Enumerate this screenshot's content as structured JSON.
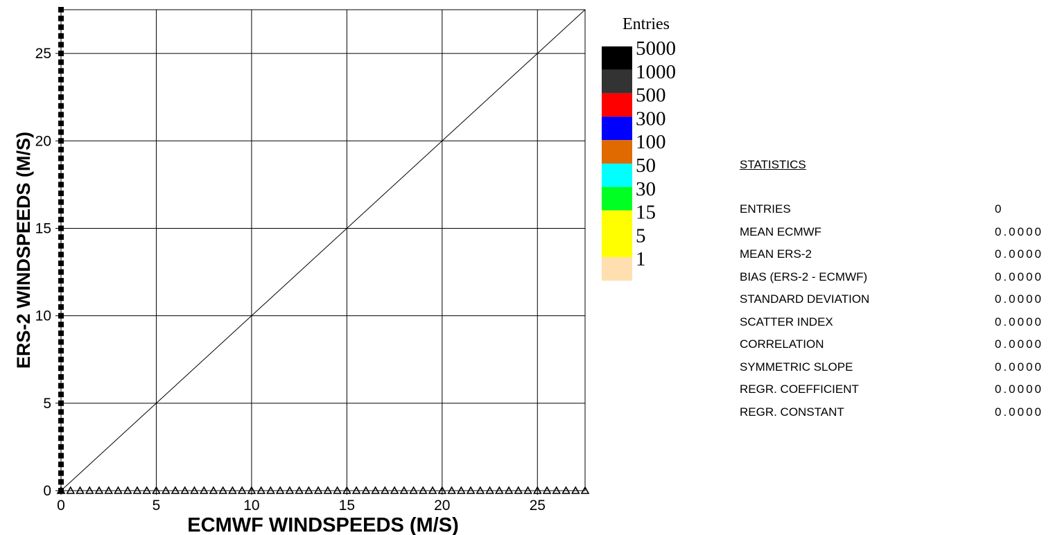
{
  "chart_data": {
    "type": "heatmap",
    "title": "",
    "xlabel": "ECMWF  WINDSPEEDS (M/S)",
    "ylabel": "ERS-2  WINDSPEEDS (M/S)",
    "xlim": [
      0,
      27.5
    ],
    "ylim": [
      0,
      27.5
    ],
    "x_ticks": [
      "0",
      "5",
      "10",
      "15",
      "20",
      "25"
    ],
    "y_ticks": [
      "0",
      "5",
      "10",
      "15",
      "20",
      "25"
    ],
    "grid": true,
    "diagonal_line": true,
    "points": [],
    "legend": {
      "title": "Entries",
      "placement": "right",
      "entries": [
        {
          "label": "5000",
          "color": "#000000"
        },
        {
          "label": "1000",
          "color": "#333333"
        },
        {
          "label": "500",
          "color": "#ff0000"
        },
        {
          "label": "300",
          "color": "#0000ff"
        },
        {
          "label": "100",
          "color": "#e06a00"
        },
        {
          "label": "50",
          "color": "#00ffff"
        },
        {
          "label": "30",
          "color": "#00ff22"
        },
        {
          "label": "15",
          "color": "#ffff00"
        },
        {
          "label": "5",
          "color": "#ffff00"
        },
        {
          "label": "1",
          "color": "#ffdfb0"
        }
      ]
    }
  },
  "statistics": {
    "title": "STATISTICS",
    "rows": [
      {
        "name": "ENTRIES",
        "value": "0"
      },
      {
        "name": "MEAN ECMWF",
        "value": "0.0000"
      },
      {
        "name": "MEAN ERS-2",
        "value": "0.0000"
      },
      {
        "name": "BIAS (ERS-2 - ECMWF)",
        "value": "0.0000"
      },
      {
        "name": "STANDARD DEVIATION",
        "value": "0.0000"
      },
      {
        "name": "SCATTER INDEX",
        "value": "0.0000"
      },
      {
        "name": "CORRELATION",
        "value": "0.0000"
      },
      {
        "name": "SYMMETRIC SLOPE",
        "value": "0.0000"
      },
      {
        "name": "REGR. COEFFICIENT",
        "value": "0.0000"
      },
      {
        "name": "REGR. CONSTANT",
        "value": "0.0000"
      }
    ]
  }
}
